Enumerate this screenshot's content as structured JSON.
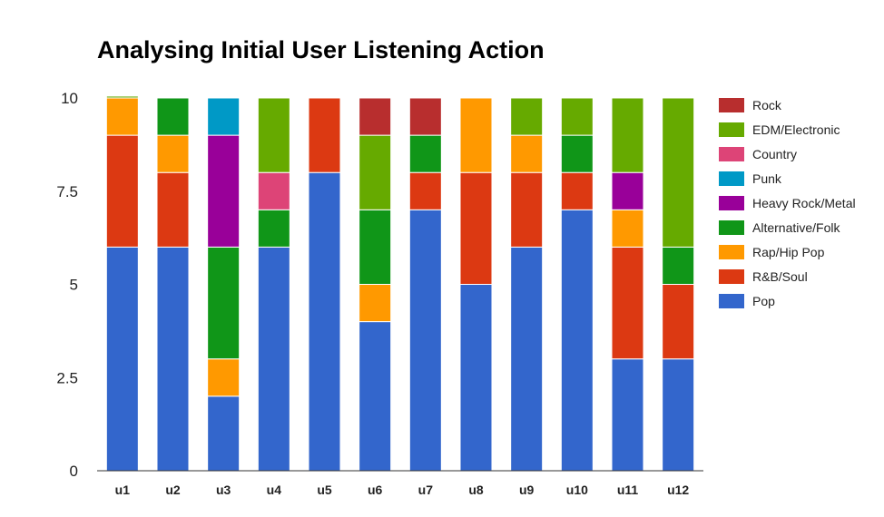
{
  "chart_data": {
    "type": "bar",
    "stacked": true,
    "title": "Analysing Initial User Listening Action",
    "xlabel": "",
    "ylabel": "",
    "ylim": [
      0,
      10
    ],
    "yticks": [
      "0",
      "2.5",
      "5",
      "7.5",
      "10"
    ],
    "grid": false,
    "legend_position": "right",
    "categories": [
      "u1",
      "u2",
      "u3",
      "u4",
      "u5",
      "u6",
      "u7",
      "u8",
      "u9",
      "u10",
      "u11",
      "u12"
    ],
    "series": [
      {
        "name": "Pop",
        "color": "#3366cc",
        "values": [
          6,
          6,
          2,
          6,
          8,
          4,
          7,
          5,
          6,
          7,
          3,
          3
        ]
      },
      {
        "name": "R&B/Soul",
        "color": "#dc3912",
        "values": [
          3,
          2,
          0,
          0,
          2,
          0,
          1,
          3,
          2,
          1,
          3,
          2
        ]
      },
      {
        "name": "Rap/Hip Pop",
        "color": "#ff9900",
        "values": [
          1,
          1,
          1,
          0,
          0,
          1,
          0,
          2,
          1,
          0,
          1,
          0
        ]
      },
      {
        "name": "Alternative/Folk",
        "color": "#109618",
        "values": [
          0,
          1,
          3,
          1,
          0,
          2,
          1,
          0,
          0,
          1,
          0,
          1
        ]
      },
      {
        "name": "Heavy Rock/Metal",
        "color": "#990099",
        "values": [
          0,
          0,
          3,
          0,
          0,
          0,
          0,
          0,
          0,
          0,
          1,
          0
        ]
      },
      {
        "name": "Punk",
        "color": "#0099c6",
        "values": [
          0,
          0,
          1,
          0,
          0,
          0,
          0,
          0,
          0,
          0,
          0,
          0
        ]
      },
      {
        "name": "Country",
        "color": "#dd4477",
        "values": [
          0,
          0,
          0,
          1,
          0,
          0,
          0,
          0,
          0,
          0,
          0,
          0
        ]
      },
      {
        "name": "EDM/Electronic",
        "color": "#66aa00",
        "values": [
          0.05,
          0,
          0,
          2,
          0,
          2,
          0,
          0,
          1,
          1,
          2,
          4
        ]
      },
      {
        "name": "Rock",
        "color": "#b82e2e",
        "values": [
          0,
          0,
          0,
          0,
          0,
          1,
          1,
          0,
          0,
          0,
          0,
          0
        ]
      }
    ]
  }
}
